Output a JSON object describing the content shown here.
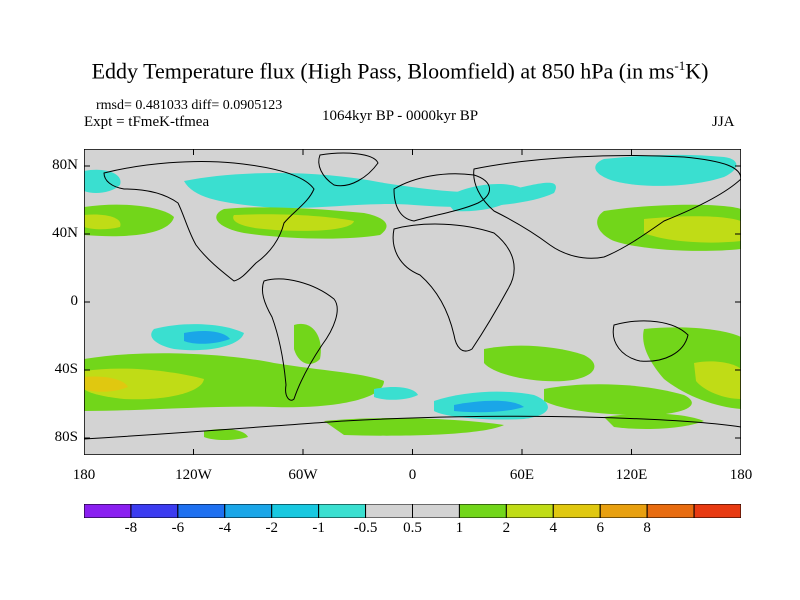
{
  "title": {
    "main": "Eddy Temperature flux (High Pass, Bloomfield) at 850 hPa (in ms",
    "sup": "-1",
    "unit_end": "K)"
  },
  "stats_text": "rmsd= 0.481033  diff= 0.0905123",
  "experiment_text": "Expt = tFmeK-tfmea",
  "period_text": "1064kyr BP - 0000kyr BP",
  "season_text": "JJA",
  "lat_labels": [
    {
      "text": "80N",
      "lat": 80
    },
    {
      "text": "40N",
      "lat": 40
    },
    {
      "text": "0",
      "lat": 0
    },
    {
      "text": "40S",
      "lat": -40
    },
    {
      "text": "80S",
      "lat": -80
    }
  ],
  "lon_labels": [
    {
      "text": "180",
      "lon": -180
    },
    {
      "text": "120W",
      "lon": -120
    },
    {
      "text": "60W",
      "lon": -60
    },
    {
      "text": "0",
      "lon": 0
    },
    {
      "text": "60E",
      "lon": 60
    },
    {
      "text": "120E",
      "lon": 120
    },
    {
      "text": "180",
      "lon": 180
    }
  ],
  "colorbar": {
    "colors": [
      "#8a1ff0",
      "#3c3cf0",
      "#1e70f0",
      "#1aa6e8",
      "#18c8e0",
      "#3adfd0",
      "#d3d3d3",
      "#d3d3d3",
      "#72d61a",
      "#c0dc16",
      "#e0c810",
      "#e8a010",
      "#e86c10",
      "#e83a12"
    ],
    "labels": [
      "-8",
      "-6",
      "-4",
      "-2",
      "-1",
      "-0.5",
      "0.5",
      "1",
      "2",
      "4",
      "6",
      "8"
    ]
  },
  "map": {
    "land_outline_color": "#000000",
    "background_color": "#d3d3d3",
    "cyan_color": "#3adfd0",
    "lightblue_color": "#1aa6e8",
    "green_color": "#72d61a",
    "yellowgreen_color": "#c0dc16",
    "orange_color": "#e0c810"
  }
}
